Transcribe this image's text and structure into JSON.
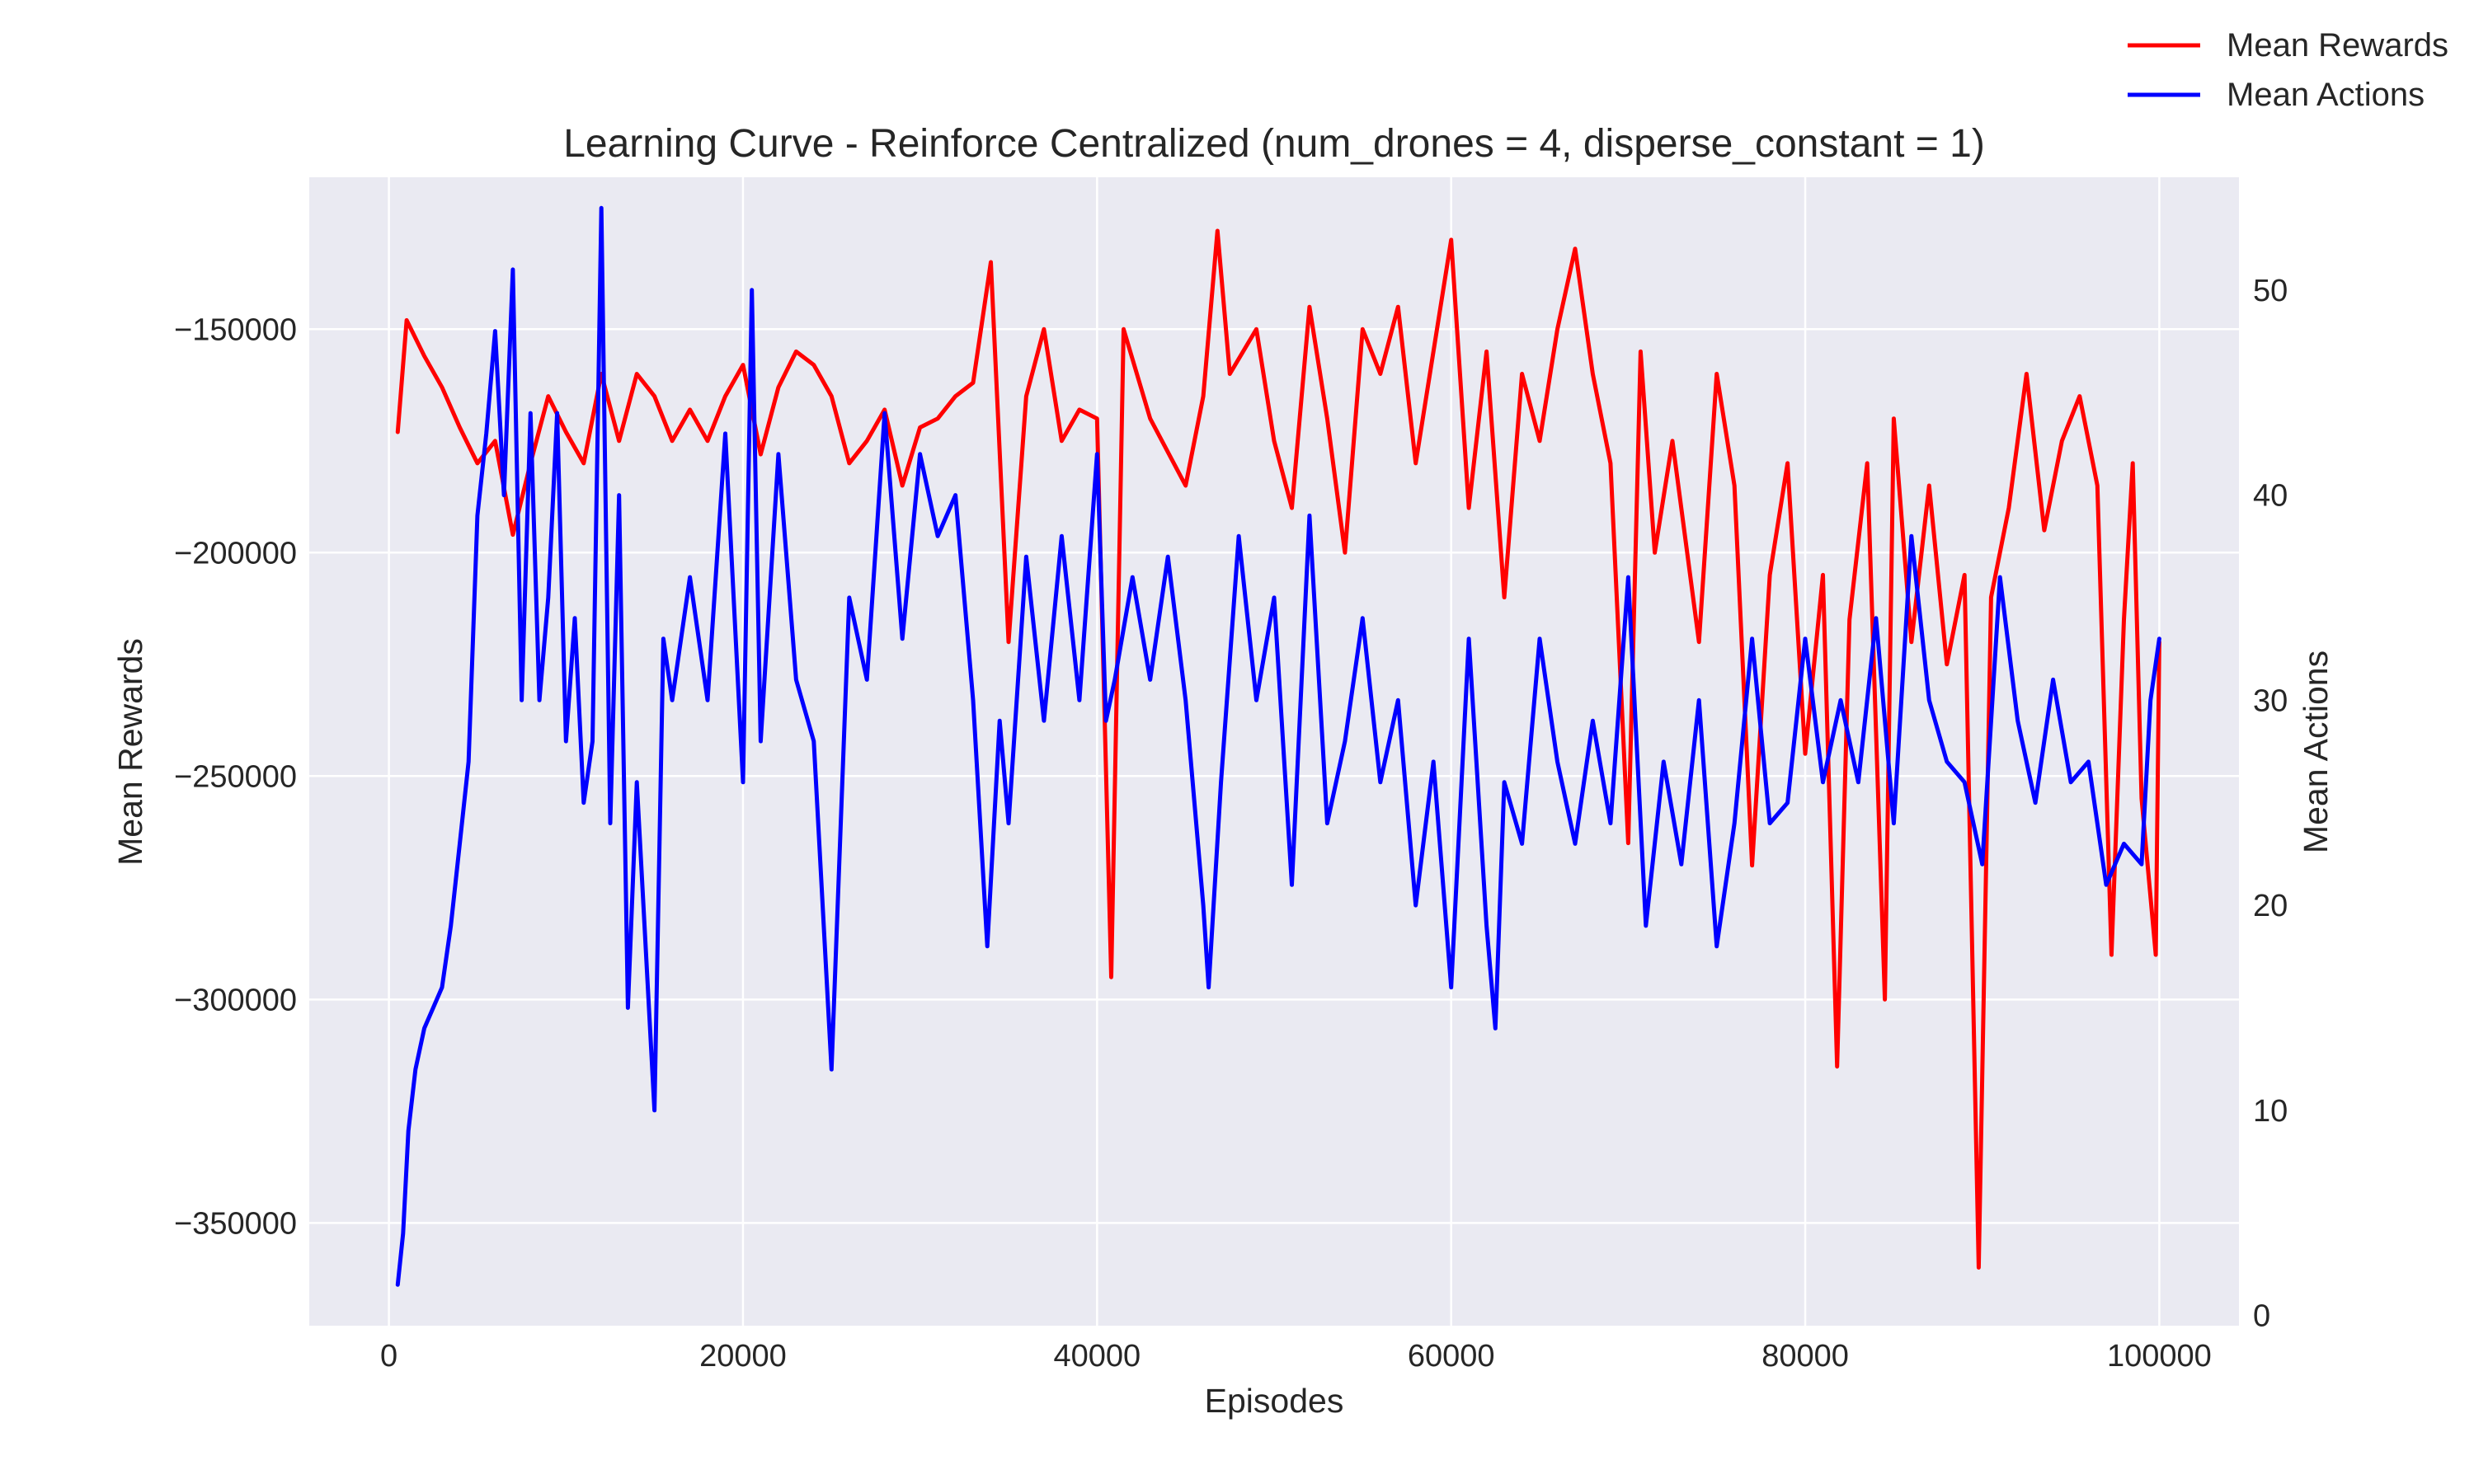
{
  "chart_data": {
    "type": "line",
    "title": "Learning Curve - Reinforce Centralized (num_drones = 4, disperse_constant = 1)",
    "xlabel": "Episodes",
    "ylabel": "Mean Rewards",
    "y2label": "Mean Actions",
    "xlim": [
      -4500,
      104500
    ],
    "ylim": [
      -373000,
      -116000
    ],
    "y2lim": [
      -0.5,
      55.5
    ],
    "xticks": [
      0,
      20000,
      40000,
      60000,
      80000,
      100000
    ],
    "yticks": [
      -350000,
      -300000,
      -250000,
      -200000,
      -150000
    ],
    "y2ticks": [
      0,
      10,
      20,
      30,
      40,
      50
    ],
    "xtick_labels": [
      "0",
      "20000",
      "40000",
      "60000",
      "80000",
      "100000"
    ],
    "ytick_labels": [
      "−350000",
      "−300000",
      "−250000",
      "−200000",
      "−150000"
    ],
    "y2tick_labels": [
      "0",
      "10",
      "20",
      "30",
      "40",
      "50"
    ],
    "grid": true,
    "legend_position": "top-right",
    "colors": {
      "plot_bg": "#eaeaf2",
      "grid": "#ffffff",
      "text": "#262626"
    },
    "series": [
      {
        "name": "Mean Rewards",
        "axis": "left",
        "color": "#ff0000",
        "x": [
          500,
          1000,
          2000,
          3000,
          4000,
          5000,
          6000,
          7000,
          8000,
          9000,
          10000,
          11000,
          12000,
          13000,
          14000,
          15000,
          16000,
          17000,
          18000,
          19000,
          20000,
          21000,
          22000,
          23000,
          24000,
          25000,
          26000,
          27000,
          28000,
          29000,
          30000,
          31000,
          32000,
          33000,
          34000,
          35000,
          36000,
          37000,
          38000,
          39000,
          40000,
          40800,
          41500,
          43000,
          45000,
          46000,
          46800,
          47500,
          49000,
          50000,
          51000,
          52000,
          53000,
          54000,
          55000,
          56000,
          57000,
          58000,
          59000,
          60000,
          61000,
          62000,
          63000,
          64000,
          65000,
          66000,
          67000,
          68000,
          69000,
          70000,
          70700,
          71500,
          72500,
          74000,
          75000,
          76000,
          77000,
          78000,
          79000,
          80000,
          81000,
          81800,
          82500,
          83500,
          84500,
          85000,
          86000,
          87000,
          88000,
          89000,
          89800,
          90500,
          91500,
          92500,
          93500,
          94500,
          95500,
          96500,
          97300,
          98000,
          98500,
          99000,
          99800,
          100000
        ],
        "y": [
          -173000,
          -148000,
          -156000,
          -163000,
          -172000,
          -180000,
          -175000,
          -196000,
          -180000,
          -165000,
          -173000,
          -180000,
          -160000,
          -175000,
          -160000,
          -165000,
          -175000,
          -168000,
          -175000,
          -165000,
          -158000,
          -178000,
          -163000,
          -155000,
          -158000,
          -165000,
          -180000,
          -175000,
          -168000,
          -185000,
          -172000,
          -170000,
          -165000,
          -162000,
          -135000,
          -220000,
          -165000,
          -150000,
          -175000,
          -168000,
          -170000,
          -295000,
          -150000,
          -170000,
          -185000,
          -165000,
          -128000,
          -160000,
          -150000,
          -175000,
          -190000,
          -145000,
          -170000,
          -200000,
          -150000,
          -160000,
          -145000,
          -180000,
          -155000,
          -130000,
          -190000,
          -155000,
          -210000,
          -160000,
          -175000,
          -150000,
          -132000,
          -160000,
          -180000,
          -265000,
          -155000,
          -200000,
          -175000,
          -220000,
          -160000,
          -185000,
          -270000,
          -205000,
          -180000,
          -245000,
          -205000,
          -315000,
          -215000,
          -180000,
          -300000,
          -170000,
          -220000,
          -185000,
          -225000,
          -205000,
          -360000,
          -210000,
          -190000,
          -160000,
          -195000,
          -175000,
          -165000,
          -185000,
          -290000,
          -215000,
          -180000,
          -255000,
          -290000,
          -220000
        ]
      },
      {
        "name": "Mean Actions",
        "axis": "right",
        "color": "#0000ff",
        "x": [
          500,
          800,
          1100,
          1500,
          2000,
          2500,
          3000,
          3500,
          4000,
          4500,
          5000,
          5500,
          6000,
          6500,
          7000,
          7500,
          8000,
          8500,
          9000,
          9500,
          10000,
          10500,
          11000,
          11500,
          12000,
          12500,
          13000,
          13500,
          14000,
          15000,
          15500,
          16000,
          17000,
          18000,
          19000,
          20000,
          20500,
          21000,
          22000,
          23000,
          24000,
          25000,
          26000,
          27000,
          28000,
          29000,
          30000,
          31000,
          32000,
          33000,
          33800,
          34500,
          35000,
          36000,
          37000,
          38000,
          39000,
          40000,
          40500,
          41000,
          42000,
          43000,
          44000,
          45000,
          46000,
          46300,
          47000,
          48000,
          49000,
          50000,
          51000,
          52000,
          53000,
          54000,
          55000,
          56000,
          57000,
          58000,
          59000,
          60000,
          61000,
          62000,
          62500,
          63000,
          64000,
          65000,
          66000,
          67000,
          68000,
          69000,
          70000,
          71000,
          72000,
          73000,
          74000,
          75000,
          76000,
          77000,
          78000,
          79000,
          80000,
          81000,
          82000,
          83000,
          84000,
          85000,
          86000,
          87000,
          88000,
          89000,
          90000,
          91000,
          92000,
          93000,
          94000,
          95000,
          96000,
          97000,
          98000,
          99000,
          99500,
          100000
        ],
        "y": [
          1.5,
          4,
          9,
          12,
          14,
          15,
          16,
          19,
          23,
          27,
          39,
          43,
          48,
          40,
          51,
          30,
          44,
          30,
          35,
          44,
          28,
          34,
          25,
          28,
          54,
          24,
          40,
          15,
          26,
          10,
          33,
          30,
          36,
          30,
          43,
          26,
          50,
          28,
          42,
          31,
          28,
          12,
          35,
          31,
          44,
          33,
          42,
          38,
          40,
          30,
          18,
          29,
          24,
          37,
          29,
          38,
          30,
          42,
          29,
          31,
          36,
          31,
          37,
          30,
          20,
          16,
          26,
          38,
          30,
          35,
          21,
          39,
          24,
          28,
          34,
          26,
          30,
          20,
          27,
          16,
          33,
          19,
          14,
          26,
          23,
          33,
          27,
          23,
          29,
          24,
          36,
          19,
          27,
          22,
          30,
          18,
          24,
          33,
          24,
          25,
          33,
          26,
          30,
          26,
          34,
          24,
          38,
          30,
          27,
          26,
          22,
          36,
          29,
          25,
          31,
          26,
          27,
          21,
          23,
          22,
          30,
          33
        ]
      }
    ]
  }
}
